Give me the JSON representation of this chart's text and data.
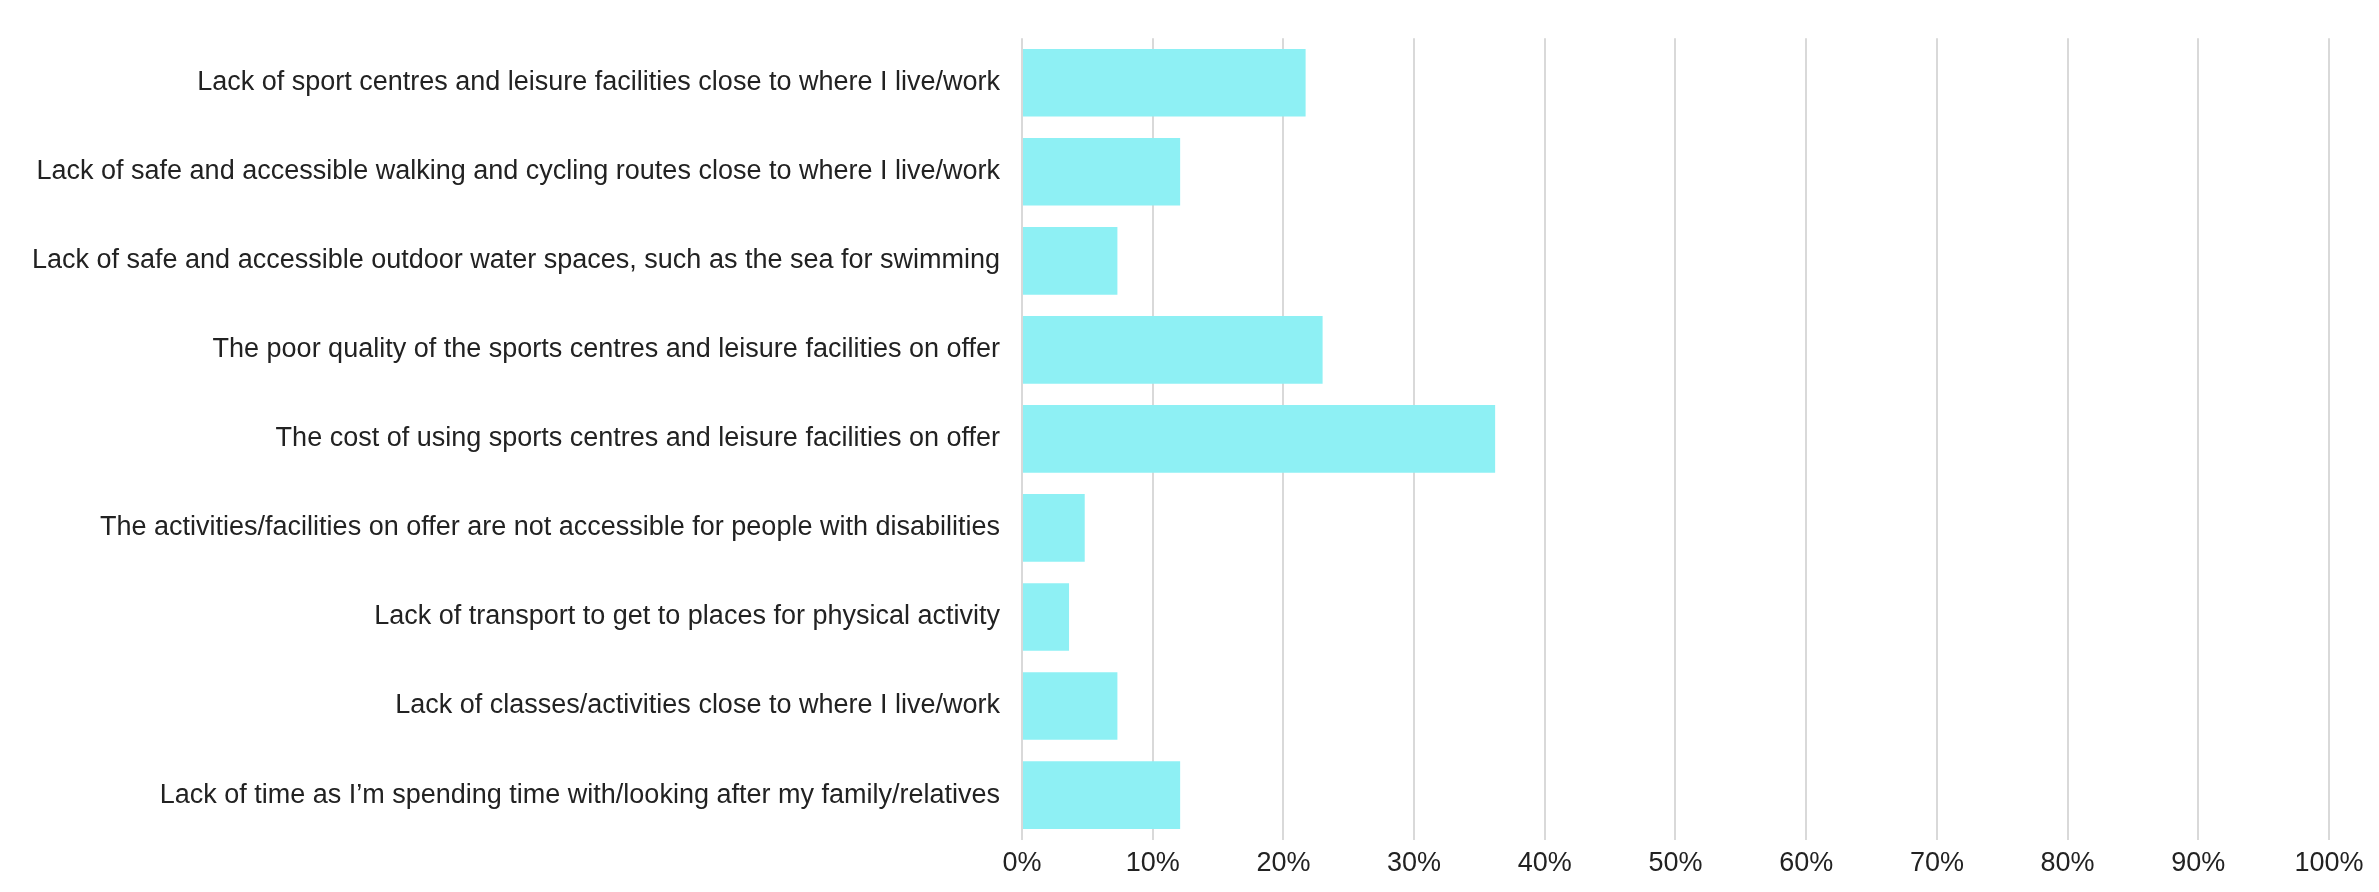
{
  "chart_data": {
    "type": "bar",
    "orientation": "horizontal",
    "categories": [
      "Lack of sport centres and leisure facilities close to where I live/work",
      "Lack of safe and accessible walking and cycling routes close to where I live/work",
      "Lack of safe and accessible outdoor water spaces, such as the sea for swimming",
      "The poor quality of the sports centres and leisure facilities on offer",
      "The cost of using sports centres and leisure facilities on offer",
      "The activities/facilities on offer are not accessible for people with disabilities",
      "Lack of transport to get to places for physical activity",
      "Lack of classes/activities close to where I live/work",
      "Lack of time as I’m spending time with/looking after my family/relatives"
    ],
    "values": [
      21.7,
      12.1,
      7.3,
      23.0,
      36.2,
      4.8,
      3.6,
      7.3,
      12.1
    ],
    "color": "#8ef0f4",
    "xlim": [
      0,
      100
    ],
    "xticks": [
      {
        "value": 0,
        "label": "0%"
      },
      {
        "value": 10,
        "label": "10%"
      },
      {
        "value": 20,
        "label": "20%"
      },
      {
        "value": 30,
        "label": "30%"
      },
      {
        "value": 40,
        "label": "40%"
      },
      {
        "value": 50,
        "label": "50%"
      },
      {
        "value": 60,
        "label": "60%"
      },
      {
        "value": 70,
        "label": "70%"
      },
      {
        "value": 80,
        "label": "80%"
      },
      {
        "value": 90,
        "label": "90%"
      },
      {
        "value": 100,
        "label": "100%"
      }
    ],
    "grid": "x"
  }
}
